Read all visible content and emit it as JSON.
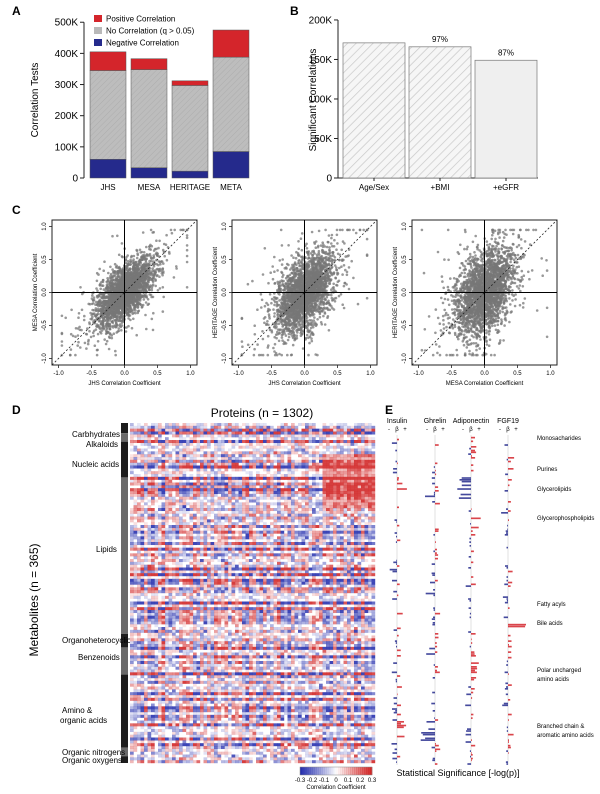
{
  "figure": {
    "panels": [
      "A",
      "B",
      "C",
      "D",
      "E"
    ],
    "colors": {
      "positive": "#d4252b",
      "none": "#b9b9b9",
      "negative": "#252a8c",
      "hatch_fill": "#efefef",
      "scatter": "#777777"
    }
  },
  "chart_data": [
    {
      "id": "A",
      "type": "bar",
      "stacked": true,
      "categories": [
        "JHS",
        "MESA",
        "HERITAGE",
        "META"
      ],
      "series": [
        {
          "name": "Negative Correlation",
          "values": [
            60000,
            33000,
            22000,
            85000
          ]
        },
        {
          "name": "No Correlation (q > 0.05)",
          "values": [
            285000,
            315000,
            275000,
            303000
          ]
        },
        {
          "name": "Positive Correlation",
          "values": [
            60000,
            35000,
            15000,
            87000
          ]
        }
      ],
      "ylabel": "Correlation Tests",
      "yticks": [
        "0",
        "100K",
        "200K",
        "300K",
        "400K",
        "500K"
      ],
      "ylim": [
        0,
        520000
      ],
      "legend_position": "top"
    },
    {
      "id": "B",
      "type": "bar",
      "categories": [
        "Age/Sex",
        "+BMI",
        "+eGFR"
      ],
      "values": [
        171000,
        166000,
        149000
      ],
      "bar_labels": [
        "",
        "97%",
        "87%"
      ],
      "ylabel": "Significant Correlations",
      "yticks": [
        "0",
        "50K",
        "100K",
        "150K",
        "200K"
      ],
      "ylim": [
        0,
        205000
      ]
    },
    {
      "id": "C",
      "type": "scatter",
      "plots": [
        {
          "xlabel": "JHS Correlation Coefficient",
          "ylabel": "MESA Correlation Coefficient"
        },
        {
          "xlabel": "JHS Correlation Coefficient",
          "ylabel": "HERITAGE Correlation Coefficient"
        },
        {
          "xlabel": "MESA Correlation Coefficient",
          "ylabel": "HERITAGE Correlation Coefficient"
        }
      ],
      "ticks": [
        "-1.0",
        "-0.5",
        "0.0",
        "0.5",
        "1.0"
      ],
      "xlim": [
        -1.1,
        1.1
      ],
      "ylim": [
        -1.1,
        1.1
      ],
      "diagonal": true
    },
    {
      "id": "D",
      "type": "heatmap",
      "title": "Proteins (n = 1302)",
      "ylabel": "Metabolites (n = 365)",
      "row_groups": [
        "Carbhydrates",
        "Alkaloids",
        "Nucleic acids",
        "Lipids",
        "Organoheterocyclics",
        "Benzenoids",
        "Amino & organic acids",
        "Organic nitrogens",
        "Organic oxygens"
      ],
      "colorbar": {
        "label": "Correlation Coefficient",
        "ticks": [
          "-0.3",
          "-0.2",
          "-0.1",
          "0",
          "0.1",
          "0.2",
          "0.3"
        ],
        "range": [
          -0.3,
          0.3
        ]
      }
    },
    {
      "id": "E",
      "type": "bar",
      "orientation": "horizontal",
      "columns": [
        "Insulin",
        "Ghrelin",
        "Adiponectin",
        "FGF19"
      ],
      "sign_labels": [
        "-",
        "β",
        "+"
      ],
      "row_groups": [
        "Monosacharides",
        "Purines",
        "Glycerolipids",
        "Glycerophospholipids",
        "Fatty acyls",
        "Bile acids",
        "Polar uncharged amino acids",
        "Branched chain & aromatic amino acids"
      ],
      "xlabel": "Statistical Significance [-log(p)]"
    }
  ]
}
